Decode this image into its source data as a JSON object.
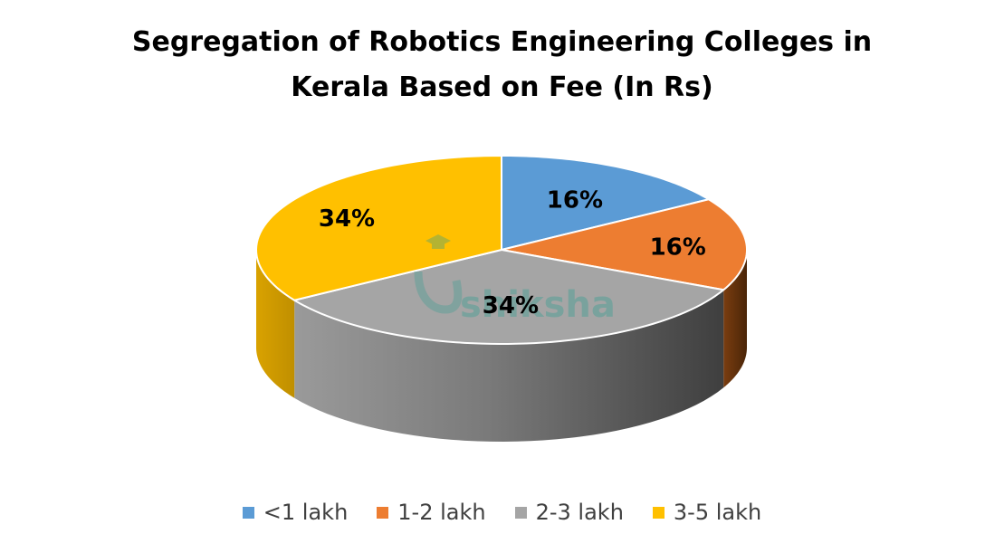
{
  "chart_data": {
    "type": "pie",
    "title_lines": [
      "Segregation of Robotics Engineering Colleges in",
      "Kerala Based on Fee (In Rs)"
    ],
    "categories": [
      "<1 lakh",
      "1-2 lakh",
      "2-3 lakh",
      "3-5 lakh"
    ],
    "values": [
      16,
      16,
      34,
      34
    ],
    "data_labels": [
      "16%",
      "16%",
      "34%",
      "34%"
    ],
    "colors": [
      "#5b9bd5",
      "#ed7d31",
      "#a5a5a5",
      "#ffc000"
    ],
    "legend_position": "bottom",
    "three_d": true
  },
  "watermark": {
    "text": "shiksha",
    "icon": "graduation-cap-icon"
  }
}
